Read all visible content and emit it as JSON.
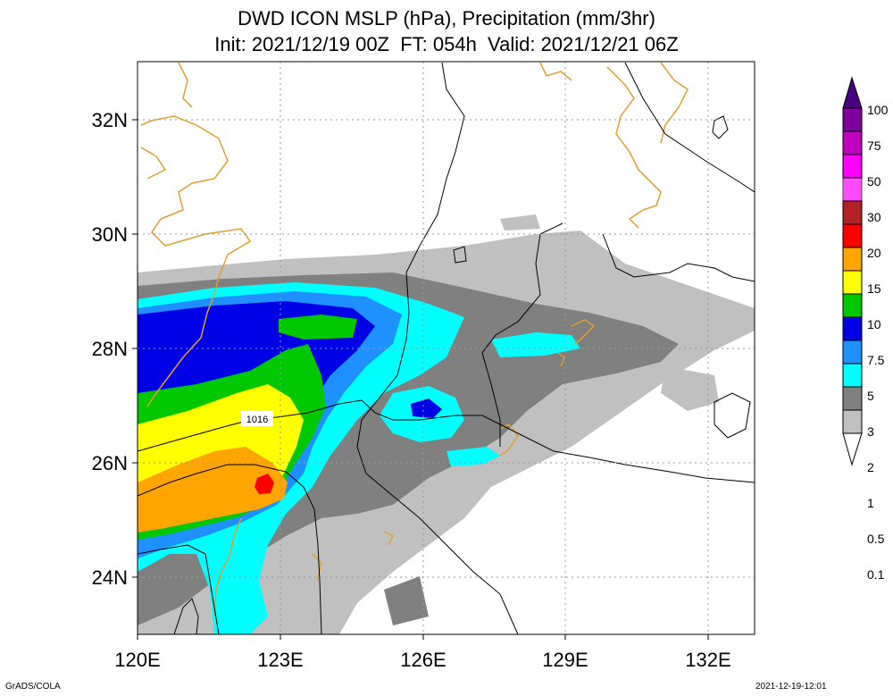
{
  "header": {
    "title": "DWD ICON MSLP (hPa), Precipitation (mm/3hr)",
    "subtitle": "Init: 2021/12/19 00Z  FT: 054h  Valid: 2021/12/21 06Z"
  },
  "map": {
    "lon_range": [
      120,
      133
    ],
    "lat_range": [
      23,
      33
    ],
    "lon_ticks": [
      "120E",
      "123E",
      "126E",
      "129E",
      "132E"
    ],
    "lat_ticks": [
      "24N",
      "26N",
      "28N",
      "30N",
      "32N"
    ],
    "isobar_label": "1016",
    "grid": true
  },
  "colorbar": {
    "levels": [
      "0.1",
      "0.5",
      "1",
      "2",
      "3",
      "5",
      "7.5",
      "10",
      "15",
      "20",
      "30",
      "50",
      "75",
      "100"
    ],
    "colors": [
      "#ffffff",
      "#c0c0c0",
      "#808080",
      "#00ffff",
      "#1e90ff",
      "#0000e6",
      "#00c800",
      "#ffff00",
      "#ffa500",
      "#ff0000",
      "#b22222",
      "#ff00ff",
      "#c000c0",
      "#8000a0",
      "#4b0082"
    ]
  },
  "footer": {
    "left": "GrADS/COLA",
    "right": "2021-12-19-12:01"
  }
}
